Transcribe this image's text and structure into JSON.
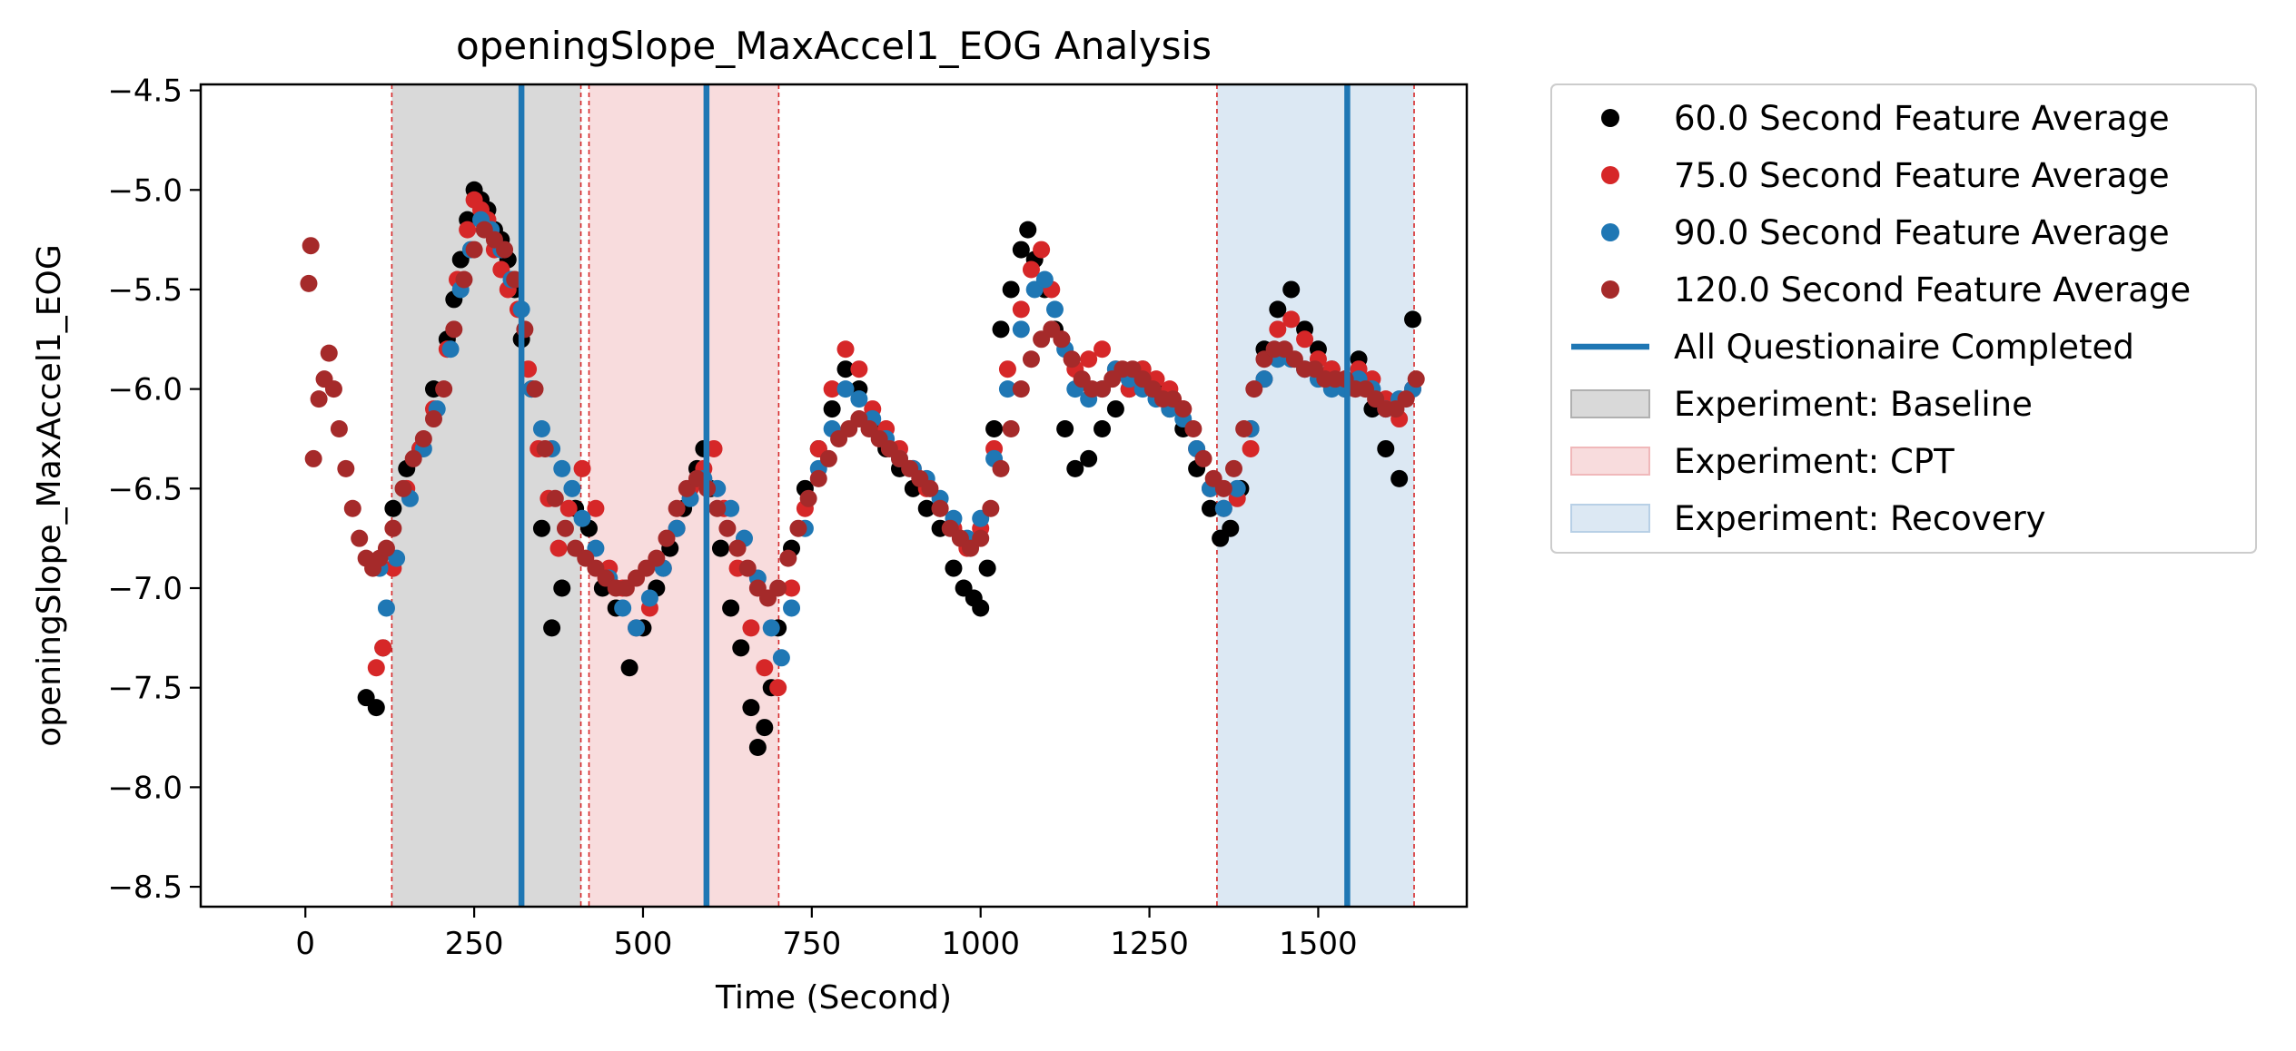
{
  "chart_data": {
    "type": "scatter",
    "title": "openingSlope_MaxAccel1_EOG Analysis",
    "xlabel": "Time (Second)",
    "ylabel": "openingSlope_MaxAccel1_EOG",
    "xlim": [
      -155,
      1720
    ],
    "ylim": [
      -8.6,
      -4.47
    ],
    "xticks": [
      0,
      250,
      500,
      750,
      1000,
      1250,
      1500
    ],
    "yticks": [
      -8.5,
      -8.0,
      -7.5,
      -7.0,
      -6.5,
      -6.0,
      -5.5,
      -5.0,
      -4.5
    ],
    "xtick_labels": [
      "0",
      "250",
      "500",
      "750",
      "1000",
      "1250",
      "1500"
    ],
    "ytick_labels": [
      "−8.5",
      "−8.0",
      "−7.5",
      "−7.0",
      "−6.5",
      "−6.0",
      "−5.5",
      "−5.0",
      "−4.5"
    ],
    "grid": false,
    "legend_position": "outside-right-top",
    "series": [
      {
        "name": "60.0 Second Feature Average",
        "color": "#000000",
        "x": [
          90,
          105,
          115,
          130,
          150,
          170,
          190,
          210,
          220,
          230,
          240,
          250,
          260,
          270,
          280,
          290,
          300,
          310,
          320,
          335,
          350,
          365,
          380,
          400,
          420,
          440,
          460,
          480,
          500,
          520,
          540,
          560,
          580,
          590,
          600,
          615,
          630,
          645,
          660,
          670,
          680,
          690,
          700,
          720,
          740,
          760,
          780,
          800,
          820,
          840,
          860,
          880,
          900,
          920,
          940,
          960,
          975,
          990,
          1000,
          1010,
          1020,
          1030,
          1045,
          1060,
          1070,
          1080,
          1095,
          1110,
          1125,
          1140,
          1160,
          1180,
          1200,
          1220,
          1240,
          1260,
          1280,
          1300,
          1320,
          1340,
          1355,
          1370,
          1385,
          1400,
          1420,
          1440,
          1460,
          1480,
          1500,
          1520,
          1540,
          1560,
          1580,
          1600,
          1620,
          1640
        ],
        "y": [
          -7.55,
          -7.6,
          -7.3,
          -6.6,
          -6.4,
          -6.3,
          -6.0,
          -5.75,
          -5.55,
          -5.35,
          -5.15,
          -5.0,
          -5.05,
          -5.1,
          -5.2,
          -5.25,
          -5.35,
          -5.5,
          -5.75,
          -6.0,
          -6.7,
          -7.2,
          -7.0,
          -6.6,
          -6.7,
          -7.0,
          -7.1,
          -7.4,
          -7.2,
          -7.0,
          -6.8,
          -6.6,
          -6.4,
          -6.3,
          -6.5,
          -6.8,
          -7.1,
          -7.3,
          -7.6,
          -7.8,
          -7.7,
          -7.5,
          -7.2,
          -6.8,
          -6.5,
          -6.3,
          -6.1,
          -5.9,
          -6.0,
          -6.2,
          -6.3,
          -6.4,
          -6.5,
          -6.6,
          -6.7,
          -6.9,
          -7.0,
          -7.05,
          -7.1,
          -6.9,
          -6.2,
          -5.7,
          -5.5,
          -5.3,
          -5.2,
          -5.35,
          -5.5,
          -5.7,
          -6.2,
          -6.4,
          -6.35,
          -6.2,
          -6.1,
          -6.0,
          -5.9,
          -6.0,
          -6.1,
          -6.2,
          -6.4,
          -6.6,
          -6.75,
          -6.7,
          -6.5,
          -6.2,
          -5.8,
          -5.6,
          -5.5,
          -5.7,
          -5.8,
          -5.9,
          -6.0,
          -5.85,
          -6.1,
          -6.3,
          -6.45,
          -5.65
        ]
      },
      {
        "name": "75.0 Second Feature Average",
        "color": "#d62728",
        "x": [
          105,
          115,
          130,
          150,
          170,
          190,
          210,
          225,
          240,
          250,
          260,
          270,
          280,
          290,
          300,
          315,
          330,
          345,
          360,
          375,
          390,
          410,
          430,
          450,
          470,
          490,
          510,
          530,
          550,
          570,
          590,
          605,
          620,
          640,
          660,
          680,
          700,
          720,
          740,
          760,
          780,
          800,
          820,
          840,
          860,
          880,
          900,
          920,
          940,
          960,
          980,
          1000,
          1020,
          1040,
          1060,
          1075,
          1090,
          1105,
          1120,
          1140,
          1160,
          1180,
          1200,
          1220,
          1240,
          1260,
          1280,
          1300,
          1320,
          1340,
          1360,
          1380,
          1400,
          1420,
          1440,
          1460,
          1480,
          1500,
          1520,
          1540,
          1560,
          1580,
          1600,
          1620,
          1640
        ],
        "y": [
          -7.4,
          -7.3,
          -6.9,
          -6.5,
          -6.3,
          -6.1,
          -5.8,
          -5.45,
          -5.2,
          -5.05,
          -5.1,
          -5.15,
          -5.3,
          -5.4,
          -5.5,
          -5.6,
          -5.9,
          -6.3,
          -6.55,
          -6.8,
          -6.6,
          -6.4,
          -6.6,
          -6.9,
          -7.0,
          -7.2,
          -7.1,
          -6.9,
          -6.7,
          -6.5,
          -6.4,
          -6.3,
          -6.6,
          -6.9,
          -7.2,
          -7.4,
          -7.5,
          -7.0,
          -6.6,
          -6.3,
          -6.0,
          -5.8,
          -5.9,
          -6.1,
          -6.2,
          -6.3,
          -6.4,
          -6.5,
          -6.6,
          -6.7,
          -6.8,
          -6.7,
          -6.3,
          -5.9,
          -5.6,
          -5.4,
          -5.3,
          -5.5,
          -5.75,
          -5.9,
          -5.85,
          -5.8,
          -5.9,
          -6.0,
          -5.9,
          -5.95,
          -6.0,
          -6.1,
          -6.3,
          -6.5,
          -6.6,
          -6.55,
          -6.3,
          -5.95,
          -5.7,
          -5.65,
          -5.75,
          -5.85,
          -5.9,
          -5.95,
          -5.9,
          -5.95,
          -6.05,
          -6.15,
          -6.0
        ]
      },
      {
        "name": "90.0 Second Feature Average",
        "color": "#1f77b4",
        "x": [
          110,
          120,
          135,
          155,
          175,
          195,
          215,
          230,
          245,
          260,
          275,
          290,
          305,
          320,
          335,
          350,
          365,
          380,
          395,
          410,
          430,
          450,
          470,
          490,
          510,
          530,
          550,
          570,
          590,
          610,
          630,
          650,
          670,
          690,
          705,
          720,
          740,
          760,
          780,
          800,
          820,
          840,
          860,
          880,
          900,
          920,
          940,
          960,
          980,
          1000,
          1020,
          1040,
          1060,
          1080,
          1095,
          1110,
          1125,
          1140,
          1160,
          1180,
          1200,
          1220,
          1240,
          1260,
          1280,
          1300,
          1320,
          1340,
          1360,
          1380,
          1400,
          1420,
          1440,
          1460,
          1480,
          1500,
          1520,
          1540,
          1560,
          1580,
          1600,
          1620,
          1640
        ],
        "y": [
          -6.9,
          -7.1,
          -6.85,
          -6.55,
          -6.3,
          -6.1,
          -5.8,
          -5.5,
          -5.3,
          -5.15,
          -5.2,
          -5.3,
          -5.45,
          -5.6,
          -6.0,
          -6.2,
          -6.3,
          -6.4,
          -6.5,
          -6.65,
          -6.8,
          -6.95,
          -7.1,
          -7.2,
          -7.05,
          -6.9,
          -6.7,
          -6.55,
          -6.45,
          -6.5,
          -6.6,
          -6.75,
          -6.95,
          -7.2,
          -7.35,
          -7.1,
          -6.7,
          -6.4,
          -6.2,
          -6.0,
          -6.05,
          -6.15,
          -6.25,
          -6.35,
          -6.4,
          -6.45,
          -6.55,
          -6.65,
          -6.75,
          -6.65,
          -6.35,
          -6.0,
          -5.7,
          -5.5,
          -5.45,
          -5.6,
          -5.8,
          -6.0,
          -6.05,
          -6.0,
          -5.9,
          -5.95,
          -6.0,
          -6.05,
          -6.1,
          -6.15,
          -6.3,
          -6.5,
          -6.6,
          -6.5,
          -6.2,
          -5.95,
          -5.85,
          -5.85,
          -5.9,
          -5.95,
          -6.0,
          -6.0,
          -5.95,
          -6.0,
          -6.1,
          -6.05,
          -6.0
        ]
      },
      {
        "name": "120.0 Second Feature Average",
        "color": "#a52a2a",
        "x": [
          5,
          8,
          12,
          20,
          28,
          35,
          42,
          50,
          60,
          70,
          80,
          90,
          100,
          110,
          120,
          130,
          145,
          160,
          175,
          190,
          205,
          220,
          235,
          250,
          265,
          280,
          295,
          310,
          325,
          340,
          355,
          370,
          385,
          400,
          415,
          430,
          445,
          460,
          475,
          490,
          505,
          520,
          535,
          550,
          565,
          580,
          595,
          610,
          625,
          640,
          655,
          670,
          685,
          700,
          715,
          730,
          745,
          760,
          775,
          790,
          805,
          820,
          835,
          850,
          865,
          880,
          895,
          910,
          925,
          940,
          955,
          970,
          985,
          1000,
          1015,
          1030,
          1045,
          1060,
          1075,
          1090,
          1105,
          1120,
          1135,
          1150,
          1165,
          1180,
          1195,
          1210,
          1225,
          1240,
          1255,
          1270,
          1285,
          1300,
          1315,
          1330,
          1345,
          1360,
          1375,
          1390,
          1405,
          1420,
          1435,
          1450,
          1465,
          1480,
          1495,
          1510,
          1525,
          1540,
          1555,
          1570,
          1585,
          1600,
          1615,
          1630,
          1645
        ],
        "y": [
          -5.47,
          -5.28,
          -6.35,
          -6.05,
          -5.95,
          -5.82,
          -6.0,
          -6.2,
          -6.4,
          -6.6,
          -6.75,
          -6.85,
          -6.9,
          -6.85,
          -6.8,
          -6.7,
          -6.5,
          -6.35,
          -6.25,
          -6.15,
          -6.0,
          -5.7,
          -5.45,
          -5.3,
          -5.2,
          -5.25,
          -5.3,
          -5.45,
          -5.7,
          -6.0,
          -6.3,
          -6.55,
          -6.7,
          -6.8,
          -6.85,
          -6.9,
          -6.95,
          -7.0,
          -7.0,
          -6.95,
          -6.9,
          -6.85,
          -6.75,
          -6.6,
          -6.5,
          -6.45,
          -6.5,
          -6.6,
          -6.7,
          -6.8,
          -6.9,
          -7.0,
          -7.05,
          -7.0,
          -6.85,
          -6.7,
          -6.55,
          -6.45,
          -6.35,
          -6.25,
          -6.2,
          -6.15,
          -6.2,
          -6.25,
          -6.3,
          -6.35,
          -6.4,
          -6.45,
          -6.5,
          -6.6,
          -6.7,
          -6.75,
          -6.8,
          -6.75,
          -6.6,
          -6.4,
          -6.2,
          -6.0,
          -5.85,
          -5.75,
          -5.7,
          -5.75,
          -5.85,
          -5.95,
          -6.0,
          -6.0,
          -5.95,
          -5.9,
          -5.9,
          -5.95,
          -6.0,
          -6.05,
          -6.05,
          -6.1,
          -6.2,
          -6.35,
          -6.45,
          -6.5,
          -6.4,
          -6.2,
          -6.0,
          -5.85,
          -5.8,
          -5.8,
          -5.85,
          -5.9,
          -5.9,
          -5.95,
          -5.95,
          -5.95,
          -6.0,
          -6.0,
          -6.05,
          -6.1,
          -6.1,
          -6.05,
          -5.95
        ]
      }
    ],
    "vertical_lines": {
      "name": "All Questionaire Completed",
      "color": "#1f77b4",
      "x": [
        320,
        594,
        1543
      ]
    },
    "spans": [
      {
        "name": "Experiment: Baseline",
        "color": "#d9d9d9",
        "edge": "#b0b0b0",
        "x0": 128,
        "x1": 408
      },
      {
        "name": "Experiment: CPT",
        "color": "#f8dcdd",
        "edge": "#f0b8ba",
        "x0": 420,
        "x1": 701
      },
      {
        "name": "Experiment: Recovery",
        "color": "#dce8f3",
        "edge": "#b8d0e6",
        "x0": 1350,
        "x1": 1642
      }
    ],
    "span_edge_color": "#d62728"
  }
}
